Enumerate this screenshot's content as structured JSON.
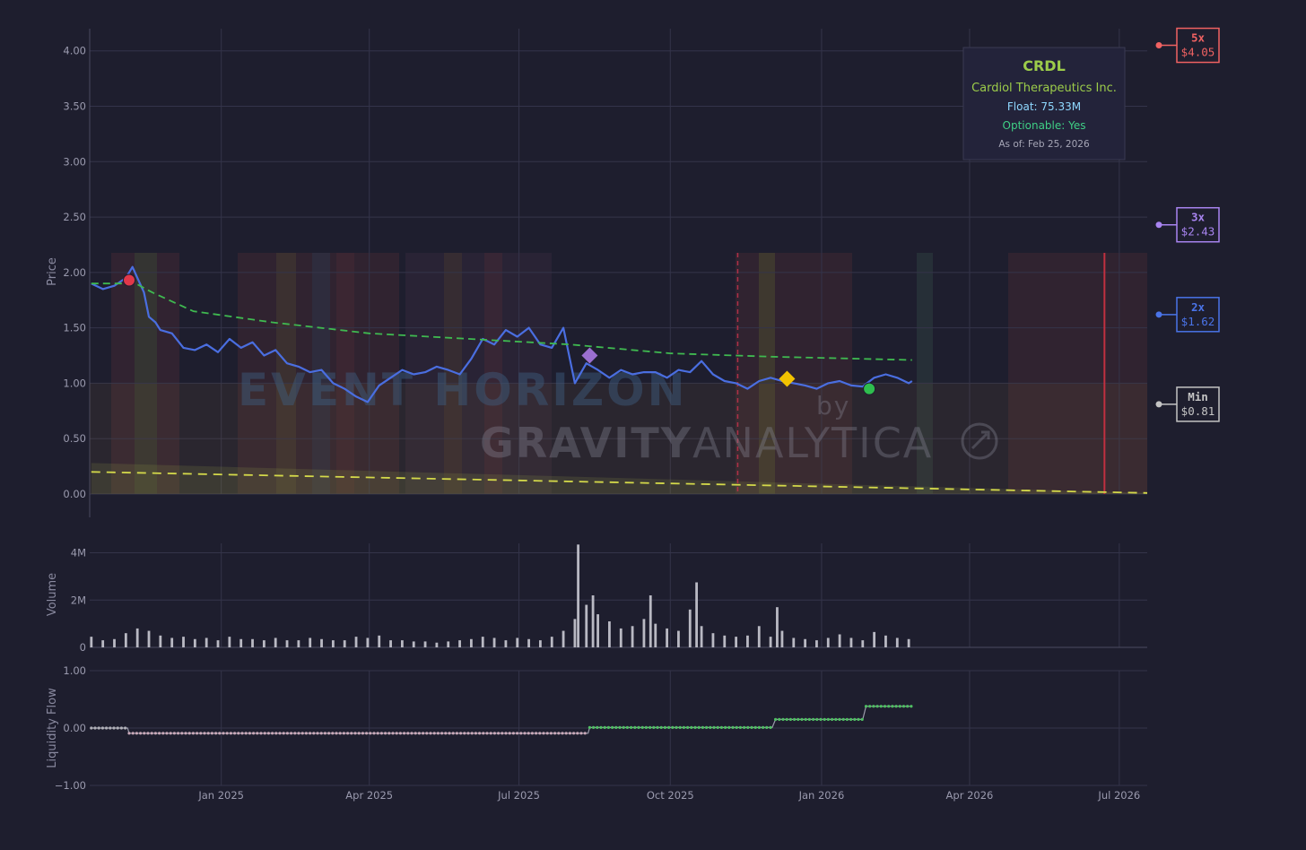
{
  "chart_data": [
    {
      "type": "line",
      "ylabel": "Price",
      "ylim": [
        0,
        4.2
      ],
      "yticks": [
        "0.00",
        "0.50",
        "1.00",
        "1.50",
        "2.00",
        "2.50",
        "3.00",
        "3.50",
        "4.00"
      ],
      "xlim": [
        "2024-10-13",
        "2026-07-18"
      ],
      "xticks": [
        {
          "date": "2025-01-01",
          "label": "Jan 2025"
        },
        {
          "date": "2025-04-01",
          "label": "Apr 2025"
        },
        {
          "date": "2025-07-01",
          "label": "Jul 2025"
        },
        {
          "date": "2025-10-01",
          "label": "Oct 2025"
        },
        {
          "date": "2026-01-01",
          "label": "Jan 2026"
        },
        {
          "date": "2026-04-01",
          "label": "Apr 2026"
        },
        {
          "date": "2026-07-01",
          "label": "Jul 2026"
        }
      ],
      "grid": true,
      "series": [
        {
          "key": "price",
          "color": "#4a6ee0",
          "x": [
            "2024-10-14",
            "2024-10-21",
            "2024-10-28",
            "2024-11-04",
            "2024-11-08",
            "2024-11-11",
            "2024-11-15",
            "2024-11-18",
            "2024-11-22",
            "2024-11-25",
            "2024-12-02",
            "2024-12-09",
            "2024-12-16",
            "2024-12-23",
            "2024-12-30",
            "2025-01-06",
            "2025-01-13",
            "2025-01-20",
            "2025-01-27",
            "2025-02-03",
            "2025-02-10",
            "2025-02-17",
            "2025-02-24",
            "2025-03-03",
            "2025-03-10",
            "2025-03-17",
            "2025-03-24",
            "2025-03-31",
            "2025-04-07",
            "2025-04-14",
            "2025-04-21",
            "2025-04-28",
            "2025-05-05",
            "2025-05-12",
            "2025-05-19",
            "2025-05-26",
            "2025-06-02",
            "2025-06-09",
            "2025-06-16",
            "2025-06-23",
            "2025-06-30",
            "2025-07-07",
            "2025-07-14",
            "2025-07-21",
            "2025-07-28",
            "2025-08-04",
            "2025-08-11",
            "2025-08-18",
            "2025-08-25",
            "2025-09-01",
            "2025-09-08",
            "2025-09-15",
            "2025-09-22",
            "2025-09-29",
            "2025-10-06",
            "2025-10-13",
            "2025-10-20",
            "2025-10-27",
            "2025-11-03",
            "2025-11-10",
            "2025-11-17",
            "2025-11-24",
            "2025-12-01",
            "2025-12-08",
            "2025-12-15",
            "2025-12-22",
            "2025-12-29",
            "2026-01-05",
            "2026-01-12",
            "2026-01-19",
            "2026-01-26",
            "2026-02-02",
            "2026-02-09",
            "2026-02-16",
            "2026-02-23",
            "2026-02-25"
          ],
          "y": [
            1.9,
            1.85,
            1.88,
            1.95,
            2.05,
            1.95,
            1.82,
            1.6,
            1.55,
            1.48,
            1.45,
            1.32,
            1.3,
            1.35,
            1.28,
            1.4,
            1.32,
            1.37,
            1.25,
            1.3,
            1.18,
            1.15,
            1.1,
            1.12,
            1.0,
            0.95,
            0.88,
            0.83,
            0.98,
            1.05,
            1.12,
            1.08,
            1.1,
            1.15,
            1.12,
            1.08,
            1.22,
            1.4,
            1.35,
            1.48,
            1.42,
            1.5,
            1.35,
            1.32,
            1.5,
            1.0,
            1.18,
            1.12,
            1.05,
            1.12,
            1.08,
            1.1,
            1.1,
            1.05,
            1.12,
            1.1,
            1.2,
            1.08,
            1.02,
            1.0,
            0.95,
            1.02,
            1.05,
            1.02,
            1.0,
            0.98,
            0.95,
            1.0,
            1.02,
            0.98,
            0.97,
            1.05,
            1.08,
            1.05,
            1.0,
            1.02
          ]
        },
        {
          "key": "green-trend",
          "color": "#3fb950",
          "dash": true,
          "x": [
            "2024-10-14",
            "2024-11-10",
            "2024-11-20",
            "2024-12-15",
            "2025-02-01",
            "2025-04-01",
            "2025-06-01",
            "2025-08-01",
            "2025-10-01",
            "2025-12-01",
            "2026-02-25"
          ],
          "y": [
            1.9,
            1.9,
            1.82,
            1.65,
            1.55,
            1.45,
            1.4,
            1.35,
            1.27,
            1.24,
            1.21
          ]
        },
        {
          "key": "yellow-floor",
          "color": "#d4d94a",
          "dash": true,
          "x": [
            "2024-10-14",
            "2026-07-18"
          ],
          "y": [
            0.2,
            0.01
          ]
        }
      ],
      "markers": [
        {
          "type": "circle",
          "color": "#e0384a",
          "x": "2024-11-06",
          "y": 1.93
        },
        {
          "type": "diamond",
          "color": "#9b6fd0",
          "x": "2025-08-13",
          "y": 1.25
        },
        {
          "type": "diamond",
          "color": "#f2c200",
          "x": "2025-12-11",
          "y": 1.04
        },
        {
          "type": "circle",
          "color": "#2fbe4e",
          "x": "2026-01-30",
          "y": 0.95
        }
      ],
      "vlines": [
        {
          "x": "2025-11-11",
          "color": "#b03048",
          "dash": true
        },
        {
          "x": "2026-06-22",
          "color": "#c03040",
          "dash": false
        }
      ],
      "levels": [
        {
          "label": "5x",
          "price": "$4.05",
          "value": 4.05,
          "color": "#f06262"
        },
        {
          "label": "3x",
          "price": "$2.43",
          "value": 2.43,
          "color": "#a884f0"
        },
        {
          "label": "2x",
          "price": "$1.62",
          "value": 1.62,
          "color": "#4a74e8"
        },
        {
          "label": "Min",
          "price": "$0.81",
          "value": 0.81,
          "color": "#c4c4c4"
        }
      ]
    },
    {
      "type": "bar",
      "ylabel": "Volume",
      "ylim": [
        0,
        4400000
      ],
      "yticks": [
        {
          "value": 0,
          "label": "0"
        },
        {
          "value": 2000000,
          "label": "2M"
        },
        {
          "value": 4000000,
          "label": "4M"
        }
      ],
      "color": "#b9b9c3",
      "x": [
        "2024-10-14",
        "2024-10-21",
        "2024-10-28",
        "2024-11-04",
        "2024-11-11",
        "2024-11-18",
        "2024-11-25",
        "2024-12-02",
        "2024-12-09",
        "2024-12-16",
        "2024-12-23",
        "2024-12-30",
        "2025-01-06",
        "2025-01-13",
        "2025-01-20",
        "2025-01-27",
        "2025-02-03",
        "2025-02-10",
        "2025-02-17",
        "2025-02-24",
        "2025-03-03",
        "2025-03-10",
        "2025-03-17",
        "2025-03-24",
        "2025-03-31",
        "2025-04-07",
        "2025-04-14",
        "2025-04-21",
        "2025-04-28",
        "2025-05-05",
        "2025-05-12",
        "2025-05-19",
        "2025-05-26",
        "2025-06-02",
        "2025-06-09",
        "2025-06-16",
        "2025-06-23",
        "2025-06-30",
        "2025-07-07",
        "2025-07-14",
        "2025-07-21",
        "2025-07-28",
        "2025-08-04",
        "2025-08-06",
        "2025-08-11",
        "2025-08-15",
        "2025-08-18",
        "2025-08-25",
        "2025-09-01",
        "2025-09-08",
        "2025-09-15",
        "2025-09-19",
        "2025-09-22",
        "2025-09-29",
        "2025-10-06",
        "2025-10-13",
        "2025-10-17",
        "2025-10-20",
        "2025-10-27",
        "2025-11-03",
        "2025-11-10",
        "2025-11-17",
        "2025-11-24",
        "2025-12-01",
        "2025-12-05",
        "2025-12-08",
        "2025-12-15",
        "2025-12-22",
        "2025-12-29",
        "2026-01-05",
        "2026-01-12",
        "2026-01-19",
        "2026-01-26",
        "2026-02-02",
        "2026-02-09",
        "2026-02-16",
        "2026-02-23"
      ],
      "values": [
        450000,
        300000,
        350000,
        600000,
        800000,
        700000,
        500000,
        400000,
        450000,
        350000,
        400000,
        300000,
        450000,
        350000,
        350000,
        300000,
        400000,
        300000,
        300000,
        400000,
        350000,
        300000,
        300000,
        450000,
        400000,
        500000,
        300000,
        300000,
        250000,
        250000,
        200000,
        250000,
        300000,
        350000,
        450000,
        400000,
        300000,
        400000,
        350000,
        300000,
        450000,
        700000,
        1200000,
        4350000,
        1800000,
        2200000,
        1400000,
        1100000,
        800000,
        900000,
        1200000,
        2200000,
        1000000,
        800000,
        700000,
        1600000,
        2750000,
        900000,
        600000,
        500000,
        450000,
        500000,
        900000,
        450000,
        1700000,
        700000,
        400000,
        350000,
        300000,
        400000,
        550000,
        400000,
        300000,
        650000,
        500000,
        400000,
        350000
      ]
    },
    {
      "type": "line",
      "ylabel": "Liquidity Flow",
      "ylim": [
        -1,
        1
      ],
      "yticks": [
        {
          "value": 1,
          "label": "1.00"
        },
        {
          "value": 0,
          "label": "0.00"
        },
        {
          "value": -1,
          "label": "−1.00"
        }
      ],
      "x": [
        "2024-10-14",
        "2024-11-05",
        "2024-11-06",
        "2025-08-12",
        "2025-08-13",
        "2025-12-02",
        "2025-12-04",
        "2026-01-26",
        "2026-01-28",
        "2026-02-25"
      ],
      "y": [
        0.0,
        0.0,
        -0.09,
        -0.09,
        0.01,
        0.01,
        0.15,
        0.15,
        0.38,
        0.38
      ]
    }
  ],
  "info_box": {
    "ticker": "CRDL",
    "company": "Cardiol Therapeutics Inc.",
    "float": "Float: 75.33M",
    "optionable": "Optionable: Yes",
    "as_of": "As of: Feb 25, 2026"
  },
  "watermark": {
    "line1": "EVENT HORIZON",
    "by": "by",
    "line2a": "GRAVITY",
    "line2b": "ANALYTICA"
  }
}
